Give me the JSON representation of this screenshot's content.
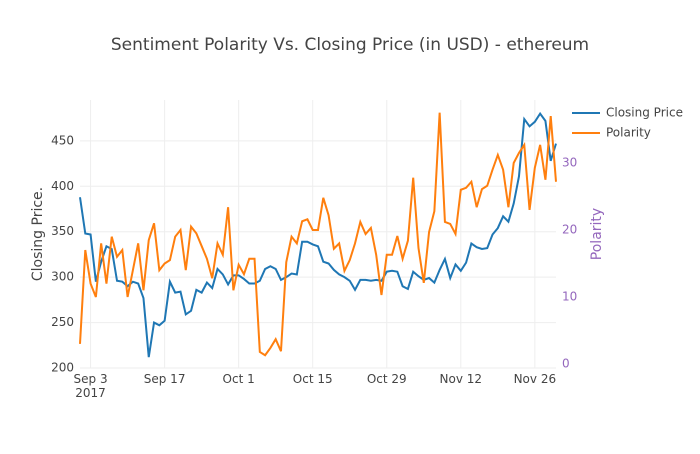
{
  "chart_data": {
    "type": "line",
    "title": "Sentiment Polarity Vs. Closing Price (in USD) - ethereum",
    "y_label": "Closing Price.",
    "y2_label": "Polarity",
    "x": [
      "2017-09-01",
      "2017-09-02",
      "2017-09-03",
      "2017-09-04",
      "2017-09-05",
      "2017-09-06",
      "2017-09-07",
      "2017-09-08",
      "2017-09-09",
      "2017-09-10",
      "2017-09-11",
      "2017-09-12",
      "2017-09-13",
      "2017-09-14",
      "2017-09-15",
      "2017-09-16",
      "2017-09-17",
      "2017-09-18",
      "2017-09-19",
      "2017-09-20",
      "2017-09-21",
      "2017-09-22",
      "2017-09-23",
      "2017-09-24",
      "2017-09-25",
      "2017-09-26",
      "2017-09-27",
      "2017-09-28",
      "2017-09-29",
      "2017-09-30",
      "2017-10-01",
      "2017-10-02",
      "2017-10-03",
      "2017-10-04",
      "2017-10-05",
      "2017-10-06",
      "2017-10-07",
      "2017-10-08",
      "2017-10-09",
      "2017-10-10",
      "2017-10-11",
      "2017-10-12",
      "2017-10-13",
      "2017-10-14",
      "2017-10-15",
      "2017-10-16",
      "2017-10-17",
      "2017-10-18",
      "2017-10-19",
      "2017-10-20",
      "2017-10-21",
      "2017-10-22",
      "2017-10-23",
      "2017-10-24",
      "2017-10-25",
      "2017-10-26",
      "2017-10-27",
      "2017-10-28",
      "2017-10-29",
      "2017-10-30",
      "2017-10-31",
      "2017-11-01",
      "2017-11-02",
      "2017-11-03",
      "2017-11-04",
      "2017-11-05",
      "2017-11-06",
      "2017-11-07",
      "2017-11-08",
      "2017-11-09",
      "2017-11-10",
      "2017-11-11",
      "2017-11-12",
      "2017-11-13",
      "2017-11-14",
      "2017-11-15",
      "2017-11-16",
      "2017-11-17",
      "2017-11-18",
      "2017-11-19",
      "2017-11-20",
      "2017-11-21",
      "2017-11-22",
      "2017-11-23",
      "2017-11-24",
      "2017-11-25",
      "2017-11-26",
      "2017-11-27",
      "2017-11-28",
      "2017-11-29",
      "2017-11-30"
    ],
    "series": [
      {
        "name": "Closing Price",
        "color": "#1f77b4",
        "axis": "y",
        "values": [
          388,
          348,
          347,
          295,
          317,
          334,
          331,
          296,
          295,
          290,
          295,
          293,
          277,
          212,
          250,
          247,
          252,
          295,
          283,
          284,
          259,
          263,
          286,
          283,
          294,
          288,
          309,
          303,
          292,
          302,
          302,
          298,
          293,
          293,
          296,
          309,
          312,
          309,
          297,
          300,
          304,
          303,
          339,
          339,
          336,
          334,
          317,
          315,
          308,
          303,
          300,
          296,
          286,
          297,
          297,
          296,
          297,
          296,
          306,
          307,
          306,
          290,
          287,
          306,
          301,
          297,
          299,
          294,
          308,
          320,
          299,
          314,
          307,
          316,
          337,
          333,
          331,
          332,
          347,
          354,
          367,
          361,
          381,
          411,
          474,
          466,
          471,
          480,
          472,
          428,
          447
        ]
      },
      {
        "name": "Polarity",
        "color": "#ff7f0e",
        "axis": "y2",
        "values": [
          3,
          17,
          12,
          10,
          18,
          12,
          19,
          16,
          17,
          10,
          14,
          18,
          11,
          18.5,
          21,
          14,
          15,
          15.5,
          19,
          20,
          14,
          20.5,
          19.5,
          17.6,
          15.7,
          12.8,
          18,
          16.3,
          23.4,
          11,
          14.8,
          13.4,
          15.7,
          15.7,
          1.8,
          1.3,
          2.4,
          3.7,
          1.9,
          15.2,
          19,
          18,
          21.3,
          21.6,
          20,
          20,
          24.8,
          22.2,
          17.2,
          18,
          13.9,
          15.5,
          18,
          21.2,
          19.4,
          20.3,
          16.3,
          10.3,
          16.3,
          16.3,
          19.1,
          15.7,
          18.4,
          27.8,
          17.3,
          12.1,
          19.7,
          22.8,
          37.5,
          21.2,
          20.9,
          19.4,
          26,
          26.3,
          27.2,
          23.4,
          26.1,
          26.6,
          29,
          31.2,
          29,
          23.4,
          30,
          31.5,
          32.7,
          23,
          29.3,
          32.7,
          27.5,
          37,
          27.2
        ]
      }
    ],
    "xlim": [
      "2017-09-01",
      "2017-11-30"
    ],
    "xticks": [
      {
        "value": "2017-09-03",
        "label": "Sep 3\n2017"
      },
      {
        "value": "2017-09-17",
        "label": "Sep 17"
      },
      {
        "value": "2017-10-01",
        "label": "Oct 1"
      },
      {
        "value": "2017-10-15",
        "label": "Oct 15"
      },
      {
        "value": "2017-10-29",
        "label": "Oct 29"
      },
      {
        "value": "2017-11-12",
        "label": "Nov 12"
      },
      {
        "value": "2017-11-26",
        "label": "Nov 26"
      }
    ],
    "ylim": [
      200,
      495
    ],
    "yticks": [
      200,
      250,
      300,
      350,
      400,
      450
    ],
    "y2lim": [
      -0.6,
      39.4
    ],
    "y2ticks": [
      0,
      10,
      20,
      30
    ],
    "y2_color": "#9467bd",
    "grid": true,
    "legend_position": "top-right"
  }
}
